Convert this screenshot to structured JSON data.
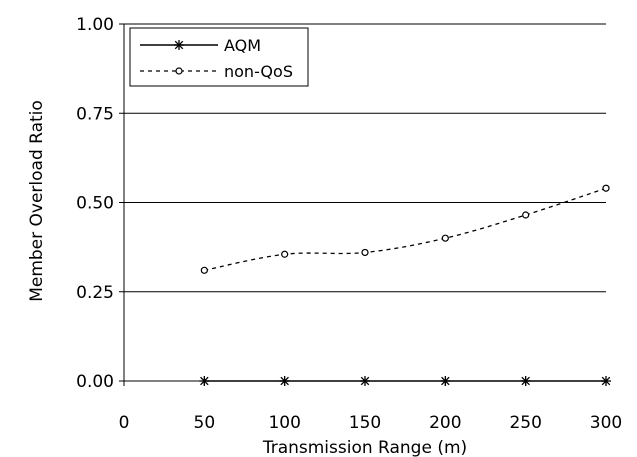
{
  "chart_data": {
    "type": "line",
    "title": "",
    "xlabel": "Transmission Range (m)",
    "ylabel": "Member Overload Ratio",
    "xlim": [
      0,
      300
    ],
    "ylim": [
      0,
      1.0
    ],
    "x_ticks": [
      "0",
      "50",
      "100",
      "150",
      "200",
      "250",
      "300"
    ],
    "y_ticks": [
      "0.00",
      "0.25",
      "0.50",
      "0.75",
      "1.00"
    ],
    "grid": "horizontal",
    "legend_position": "top-left",
    "series": [
      {
        "name": "AQM",
        "style": "solid",
        "marker": "asterisk",
        "color": "#000000",
        "x": [
          50,
          100,
          150,
          200,
          250,
          300
        ],
        "y": [
          0.0,
          0.0,
          0.0,
          0.0,
          0.0,
          0.0
        ]
      },
      {
        "name": "non-QoS",
        "style": "dashed",
        "marker": "circle",
        "color": "#000000",
        "x": [
          50,
          100,
          150,
          200,
          250,
          300
        ],
        "y": [
          0.31,
          0.355,
          0.36,
          0.4,
          0.465,
          0.54
        ]
      }
    ]
  }
}
